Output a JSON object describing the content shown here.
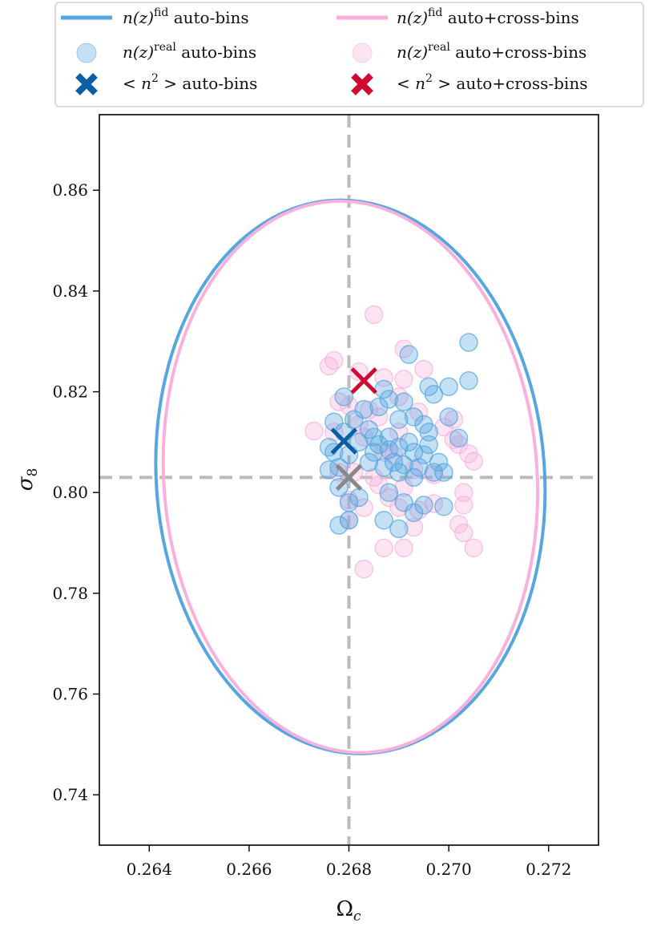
{
  "chart_data": {
    "type": "scatter",
    "xlabel": "Ω",
    "xlabel_sub": "c",
    "ylabel": "σ",
    "ylabel_sub": "8",
    "xlim": [
      0.263,
      0.273
    ],
    "ylim": [
      0.73,
      0.875
    ],
    "xticks": [
      0.264,
      0.266,
      0.268,
      0.27,
      0.272
    ],
    "xtick_labels": [
      "0.264",
      "0.266",
      "0.268",
      "0.270",
      "0.272"
    ],
    "yticks": [
      0.74,
      0.76,
      0.78,
      0.8,
      0.82,
      0.84,
      0.86
    ],
    "ytick_labels": [
      "0.74",
      "0.76",
      "0.78",
      "0.80",
      "0.82",
      "0.84",
      "0.86"
    ],
    "grid": false,
    "legend_placement": "top",
    "fiducial": {
      "x": 0.268,
      "y": 0.803,
      "color": "#bbbbbb",
      "marker_color": "#888888"
    },
    "colors": {
      "auto": "#56a6e0",
      "cross": "#f7b1dc",
      "auto_mean": "#0b5ea3",
      "cross_mean": "#cf0b34"
    },
    "ellipses": [
      {
        "name": "auto-bins fid",
        "cx": 0.26803,
        "cy": 0.8031,
        "rx": 0.00389,
        "ry": 0.055,
        "tilt_deg": -4,
        "color": "#56a6e0"
      },
      {
        "name": "auto+cross-bins fid",
        "cx": 0.26803,
        "cy": 0.8031,
        "rx": 0.00374,
        "ry": 0.0548,
        "tilt_deg": -4,
        "color": "#f7b1dc"
      }
    ],
    "means": [
      {
        "name": "auto-bins",
        "x": 0.2679,
        "y": 0.8102,
        "color": "#0b5ea3"
      },
      {
        "name": "auto+cross-bins",
        "x": 0.2683,
        "y": 0.8222,
        "color": "#cf0b34"
      }
    ],
    "series": [
      {
        "name": "auto+cross-bins",
        "color": "#f7b1dc",
        "points": [
          [
            0.2685,
            0.8353
          ],
          [
            0.2677,
            0.8262
          ],
          [
            0.2676,
            0.8251
          ],
          [
            0.2691,
            0.8285
          ],
          [
            0.2695,
            0.8245
          ],
          [
            0.2682,
            0.824
          ],
          [
            0.2687,
            0.8228
          ],
          [
            0.2691,
            0.8225
          ],
          [
            0.2678,
            0.818
          ],
          [
            0.268,
            0.8172
          ],
          [
            0.2684,
            0.8164
          ],
          [
            0.269,
            0.819
          ],
          [
            0.2694,
            0.816
          ],
          [
            0.2673,
            0.8122
          ],
          [
            0.2677,
            0.812
          ],
          [
            0.2683,
            0.811
          ],
          [
            0.2687,
            0.808
          ],
          [
            0.269,
            0.812
          ],
          [
            0.2699,
            0.813
          ],
          [
            0.2701,
            0.8145
          ],
          [
            0.2701,
            0.8105
          ],
          [
            0.2702,
            0.8095
          ],
          [
            0.2704,
            0.8077
          ],
          [
            0.2705,
            0.8062
          ],
          [
            0.2678,
            0.804
          ],
          [
            0.2681,
            0.804
          ],
          [
            0.2685,
            0.803
          ],
          [
            0.2691,
            0.801
          ],
          [
            0.2693,
            0.8045
          ],
          [
            0.2697,
            0.8035
          ],
          [
            0.2703,
            0.8
          ],
          [
            0.2703,
            0.7975
          ],
          [
            0.268,
            0.7985
          ],
          [
            0.2683,
            0.797
          ],
          [
            0.2688,
            0.799
          ],
          [
            0.269,
            0.797
          ],
          [
            0.2694,
            0.7965
          ],
          [
            0.2697,
            0.7978
          ],
          [
            0.2702,
            0.7937
          ],
          [
            0.2703,
            0.792
          ],
          [
            0.2705,
            0.789
          ],
          [
            0.2693,
            0.7931
          ],
          [
            0.2687,
            0.789
          ],
          [
            0.2691,
            0.789
          ],
          [
            0.268,
            0.7945
          ],
          [
            0.2683,
            0.7848
          ],
          [
            0.2686,
            0.8015
          ],
          [
            0.2689,
            0.8075
          ],
          [
            0.2682,
            0.8135
          ],
          [
            0.2686,
            0.815
          ]
        ]
      },
      {
        "name": "auto-bins",
        "color": "#56a6e0",
        "points": [
          [
            0.2704,
            0.8298
          ],
          [
            0.2704,
            0.8222
          ],
          [
            0.27,
            0.821
          ],
          [
            0.2692,
            0.8274
          ],
          [
            0.2696,
            0.821
          ],
          [
            0.2697,
            0.8195
          ],
          [
            0.27,
            0.815
          ],
          [
            0.2702,
            0.8108
          ],
          [
            0.2677,
            0.814
          ],
          [
            0.2679,
            0.812
          ],
          [
            0.2679,
            0.819
          ],
          [
            0.2683,
            0.8165
          ],
          [
            0.2686,
            0.817
          ],
          [
            0.2688,
            0.8185
          ],
          [
            0.2687,
            0.8205
          ],
          [
            0.2691,
            0.818
          ],
          [
            0.2693,
            0.815
          ],
          [
            0.2695,
            0.8135
          ],
          [
            0.2696,
            0.812
          ],
          [
            0.269,
            0.8145
          ],
          [
            0.2676,
            0.809
          ],
          [
            0.2677,
            0.808
          ],
          [
            0.268,
            0.8075
          ],
          [
            0.2682,
            0.81
          ],
          [
            0.2685,
            0.811
          ],
          [
            0.2686,
            0.8095
          ],
          [
            0.2688,
            0.8085
          ],
          [
            0.269,
            0.809
          ],
          [
            0.2692,
            0.81
          ],
          [
            0.2693,
            0.808
          ],
          [
            0.2695,
            0.8075
          ],
          [
            0.2696,
            0.8095
          ],
          [
            0.2698,
            0.806
          ],
          [
            0.2689,
            0.806
          ],
          [
            0.2691,
            0.8055
          ],
          [
            0.2694,
            0.805
          ],
          [
            0.2676,
            0.8045
          ],
          [
            0.2678,
            0.805
          ],
          [
            0.2684,
            0.806
          ],
          [
            0.2687,
            0.805
          ],
          [
            0.269,
            0.804
          ],
          [
            0.2693,
            0.803
          ],
          [
            0.2697,
            0.804
          ],
          [
            0.2699,
            0.804
          ],
          [
            0.2678,
            0.801
          ],
          [
            0.268,
            0.798
          ],
          [
            0.2682,
            0.799
          ],
          [
            0.2688,
            0.8
          ],
          [
            0.2691,
            0.798
          ],
          [
            0.2693,
            0.796
          ],
          [
            0.2695,
            0.7975
          ],
          [
            0.2699,
            0.7972
          ],
          [
            0.2678,
            0.7935
          ],
          [
            0.268,
            0.7945
          ],
          [
            0.2687,
            0.7945
          ],
          [
            0.269,
            0.7928
          ],
          [
            0.2685,
            0.808
          ],
          [
            0.2688,
            0.811
          ],
          [
            0.2681,
            0.8145
          ],
          [
            0.2684,
            0.8125
          ]
        ]
      }
    ]
  },
  "legend": {
    "items": [
      {
        "kind": "line",
        "color": "#56a6e0",
        "math": "n(z)",
        "sup": "fid",
        "text": "auto-bins"
      },
      {
        "kind": "line",
        "color": "#f7b1dc",
        "math": "n(z)",
        "sup": "fid",
        "text": "auto+cross-bins"
      },
      {
        "kind": "dot",
        "color": "#56a6e0",
        "math": "n(z)",
        "sup": "real",
        "text": "auto-bins"
      },
      {
        "kind": "dot",
        "color": "#f7b1dc",
        "math": "n(z)",
        "sup": "real",
        "text": "auto+cross-bins"
      },
      {
        "kind": "cross",
        "color": "#0b5ea3",
        "math": "< n",
        "sup": "2",
        "post": " >",
        "text": "auto-bins"
      },
      {
        "kind": "cross",
        "color": "#cf0b34",
        "math": "< n",
        "sup": "2",
        "post": " >",
        "text": "auto+cross-bins"
      }
    ]
  }
}
